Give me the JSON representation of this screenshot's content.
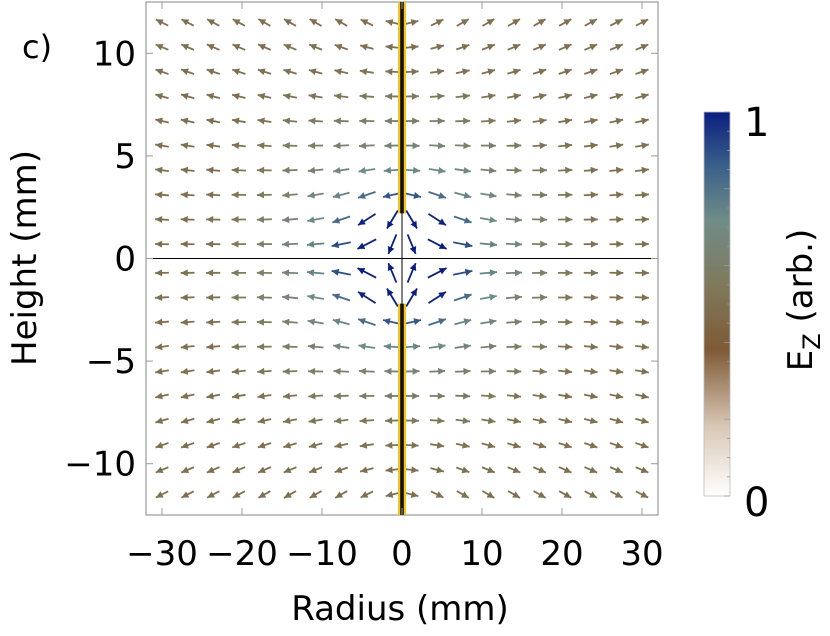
{
  "panel_label": "c)",
  "chart_data": {
    "type": "vector-field",
    "xlabel": "Radius (mm)",
    "ylabel": "Height (mm)",
    "xlim": [
      -32,
      32
    ],
    "ylim": [
      -12.5,
      12.5
    ],
    "xticks": [
      -30,
      -20,
      -10,
      0,
      10,
      20,
      30
    ],
    "xtick_labels": [
      "−30",
      "−20",
      "−10",
      "0",
      "10",
      "20",
      "30"
    ],
    "yticks": [
      10,
      5,
      0,
      -5,
      -10
    ],
    "ytick_labels": [
      "10",
      "5",
      "0",
      "−5",
      "−10"
    ],
    "grid": false,
    "field": {
      "description": "Electric field arrows radiating away from two vertical conductors on the axis",
      "conductors": [
        {
          "x": 0,
          "y_from": 2.2,
          "y_to": 12.5
        },
        {
          "x": 0,
          "y_from": -12.5,
          "y_to": -2.2
        }
      ],
      "arrow_grid_x": [
        -30,
        -26.8,
        -23.6,
        -20.4,
        -17.2,
        -14,
        -10.8,
        -7.6,
        -4.4,
        -1.2,
        1.2,
        4.4,
        7.6,
        10.8,
        14,
        17.2,
        20.4,
        23.6,
        26.8,
        30
      ],
      "arrow_grid_y": [
        11.5,
        10.3,
        9.1,
        7.9,
        6.7,
        5.5,
        4.3,
        3.1,
        1.9,
        0.7,
        -0.7,
        -1.9,
        -3.1,
        -4.3,
        -5.5,
        -6.7,
        -7.9,
        -9.1,
        -10.3,
        -11.5
      ],
      "color_by": "E_z"
    },
    "colorbar": {
      "label_main": "E",
      "label_sub": "Z",
      "label_rest": " (arb.)",
      "min_label": "0",
      "max_label": "1",
      "colors": [
        "#ffffff",
        "#d9c8b6",
        "#8a6a48",
        "#7f6746",
        "#889a88",
        "#466f90",
        "#0a1f80"
      ]
    },
    "conductor_color": "#f5c518",
    "conductor_core_color": "#111111"
  }
}
